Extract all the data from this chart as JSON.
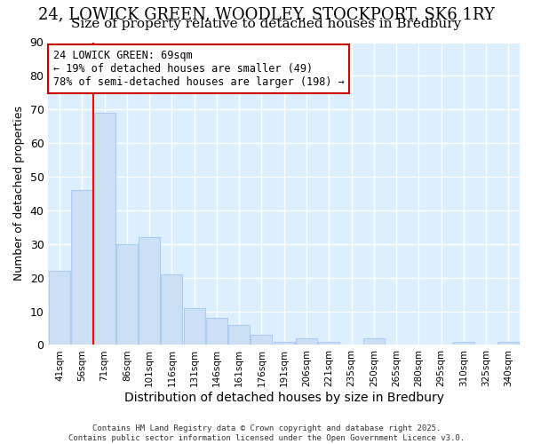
{
  "title": "24, LOWICK GREEN, WOODLEY, STOCKPORT, SK6 1RY",
  "subtitle": "Size of property relative to detached houses in Bredbury",
  "xlabel": "Distribution of detached houses by size in Bredbury",
  "ylabel": "Number of detached properties",
  "categories": [
    "41sqm",
    "56sqm",
    "71sqm",
    "86sqm",
    "101sqm",
    "116sqm",
    "131sqm",
    "146sqm",
    "161sqm",
    "176sqm",
    "191sqm",
    "206sqm",
    "221sqm",
    "235sqm",
    "250sqm",
    "265sqm",
    "280sqm",
    "295sqm",
    "310sqm",
    "325sqm",
    "340sqm"
  ],
  "values": [
    22,
    46,
    69,
    30,
    32,
    21,
    11,
    8,
    6,
    3,
    1,
    2,
    1,
    0,
    2,
    0,
    0,
    0,
    1,
    0,
    1
  ],
  "bar_color": "#cce0f5",
  "bar_edge_color": "#aaccee",
  "red_line_x": 1.5,
  "annotation_text": "24 LOWICK GREEN: 69sqm\n← 19% of detached houses are smaller (49)\n78% of semi-detached houses are larger (198) →",
  "annotation_box_color": "#ffffff",
  "annotation_box_edge": "#cc0000",
  "ylim": [
    0,
    90
  ],
  "yticks": [
    0,
    10,
    20,
    30,
    40,
    50,
    60,
    70,
    80,
    90
  ],
  "fig_background_color": "#ffffff",
  "plot_background_color": "#ddeeff",
  "grid_color": "#ffffff",
  "footer_text": "Contains HM Land Registry data © Crown copyright and database right 2025.\nContains public sector information licensed under the Open Government Licence v3.0.",
  "title_fontsize": 13,
  "subtitle_fontsize": 11,
  "xlabel_fontsize": 10,
  "ylabel_fontsize": 9,
  "annotation_fontsize": 8.5
}
